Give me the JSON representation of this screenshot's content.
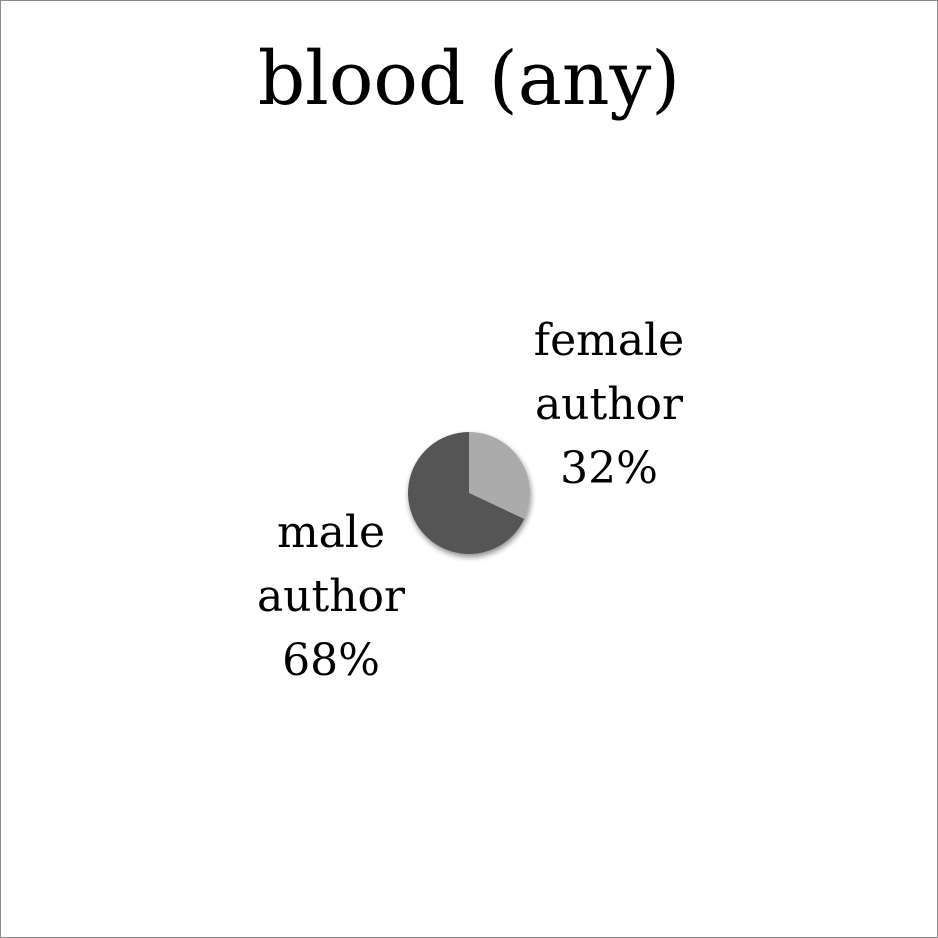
{
  "chart_data": {
    "type": "pie",
    "title": "blood (any)",
    "slices": [
      {
        "label_lines": [
          "female",
          "author"
        ],
        "value": 32,
        "value_text": "32%",
        "color": "#ababab"
      },
      {
        "label_lines": [
          "male",
          "author"
        ],
        "value": 68,
        "value_text": "68%",
        "color": "#555555"
      }
    ]
  }
}
